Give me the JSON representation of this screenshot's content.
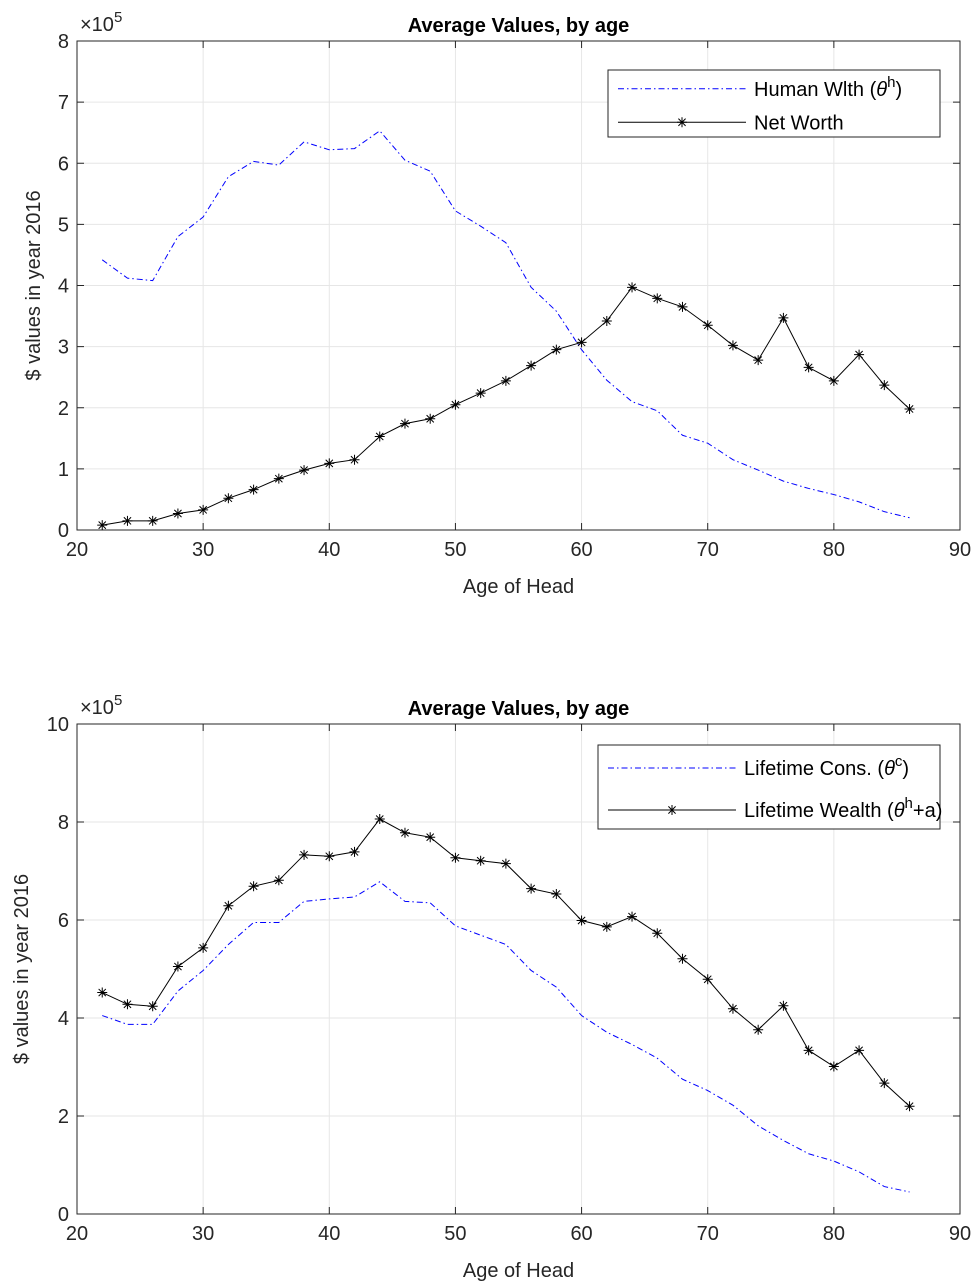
{
  "chart_data": [
    {
      "type": "line",
      "title": "Average Values, by age",
      "xlabel": "Age of Head",
      "ylabel": "$ values in year 2016",
      "xlim": [
        20,
        90
      ],
      "ylim": [
        0,
        8
      ],
      "x_ticks": [
        "20",
        "30",
        "40",
        "50",
        "60",
        "70",
        "80",
        "90"
      ],
      "y_ticks": [
        "0",
        "1",
        "2",
        "3",
        "4",
        "5",
        "6",
        "7",
        "8"
      ],
      "y_exponent": "×10",
      "y_exponent_power": "5",
      "grid": true,
      "legend_position": "top-right",
      "x": [
        22,
        24,
        26,
        28,
        30,
        32,
        34,
        36,
        38,
        40,
        42,
        44,
        46,
        48,
        50,
        52,
        54,
        56,
        58,
        60,
        62,
        64,
        66,
        68,
        70,
        72,
        74,
        76,
        78,
        80,
        82,
        84,
        86
      ],
      "series": [
        {
          "legend_main": "Human Wlth (",
          "legend_sym": "θ",
          "legend_sup": "h",
          "legend_tail": ")",
          "color": "#0000ff",
          "style": "dashdot",
          "marker": "none",
          "values": [
            4.42,
            4.12,
            4.08,
            4.8,
            5.12,
            5.78,
            6.03,
            5.97,
            6.35,
            6.22,
            6.24,
            6.53,
            6.05,
            5.87,
            5.22,
            4.97,
            4.7,
            3.97,
            3.58,
            2.95,
            2.45,
            2.1,
            1.95,
            1.55,
            1.42,
            1.15,
            0.98,
            0.8,
            0.68,
            0.58,
            0.46,
            0.3,
            0.2
          ]
        },
        {
          "legend_main": "Net Worth",
          "legend_sym": "",
          "legend_sup": "",
          "legend_tail": "",
          "color": "#000000",
          "style": "solid",
          "marker": "asterisk",
          "values": [
            0.08,
            0.15,
            0.15,
            0.27,
            0.33,
            0.52,
            0.66,
            0.84,
            0.98,
            1.09,
            1.15,
            1.53,
            1.74,
            1.82,
            2.05,
            2.24,
            2.44,
            2.69,
            2.95,
            3.07,
            3.42,
            3.97,
            3.79,
            3.65,
            3.35,
            3.02,
            2.78,
            3.47,
            2.66,
            2.44,
            2.87,
            2.37,
            1.98
          ]
        }
      ]
    },
    {
      "type": "line",
      "title": "Average Values, by age",
      "xlabel": "Age of Head",
      "ylabel": "$ values in year 2016",
      "xlim": [
        20,
        90
      ],
      "ylim": [
        0,
        10
      ],
      "x_ticks": [
        "20",
        "30",
        "40",
        "50",
        "60",
        "70",
        "80",
        "90"
      ],
      "y_ticks": [
        "0",
        "2",
        "4",
        "6",
        "8",
        "10"
      ],
      "y_exponent": "×10",
      "y_exponent_power": "5",
      "grid": true,
      "legend_position": "top-right",
      "x": [
        22,
        24,
        26,
        28,
        30,
        32,
        34,
        36,
        38,
        40,
        42,
        44,
        46,
        48,
        50,
        52,
        54,
        56,
        58,
        60,
        62,
        64,
        66,
        68,
        70,
        72,
        74,
        76,
        78,
        80,
        82,
        84,
        86
      ],
      "series": [
        {
          "legend_main": "Lifetime Cons. (",
          "legend_sym": "θ",
          "legend_sup": "c",
          "legend_tail": ")",
          "color": "#0000ff",
          "style": "dashdot",
          "marker": "none",
          "values": [
            4.05,
            3.87,
            3.87,
            4.55,
            4.97,
            5.5,
            5.95,
            5.95,
            6.38,
            6.43,
            6.47,
            6.78,
            6.38,
            6.35,
            5.88,
            5.69,
            5.5,
            4.97,
            4.63,
            4.05,
            3.71,
            3.46,
            3.18,
            2.75,
            2.52,
            2.22,
            1.8,
            1.5,
            1.23,
            1.08,
            0.86,
            0.56,
            0.45
          ]
        },
        {
          "legend_main": "Lifetime Wealth (",
          "legend_sym": "θ",
          "legend_sup": "h",
          "legend_tail": "+a)",
          "color": "#000000",
          "style": "solid",
          "marker": "asterisk",
          "values": [
            4.52,
            4.28,
            4.24,
            5.05,
            5.43,
            6.29,
            6.69,
            6.81,
            7.33,
            7.3,
            7.39,
            8.06,
            7.78,
            7.69,
            7.27,
            7.21,
            7.15,
            6.64,
            6.53,
            5.99,
            5.86,
            6.07,
            5.73,
            5.21,
            4.79,
            4.19,
            3.76,
            4.25,
            3.34,
            3.01,
            3.34,
            2.67,
            2.2
          ]
        }
      ]
    }
  ]
}
